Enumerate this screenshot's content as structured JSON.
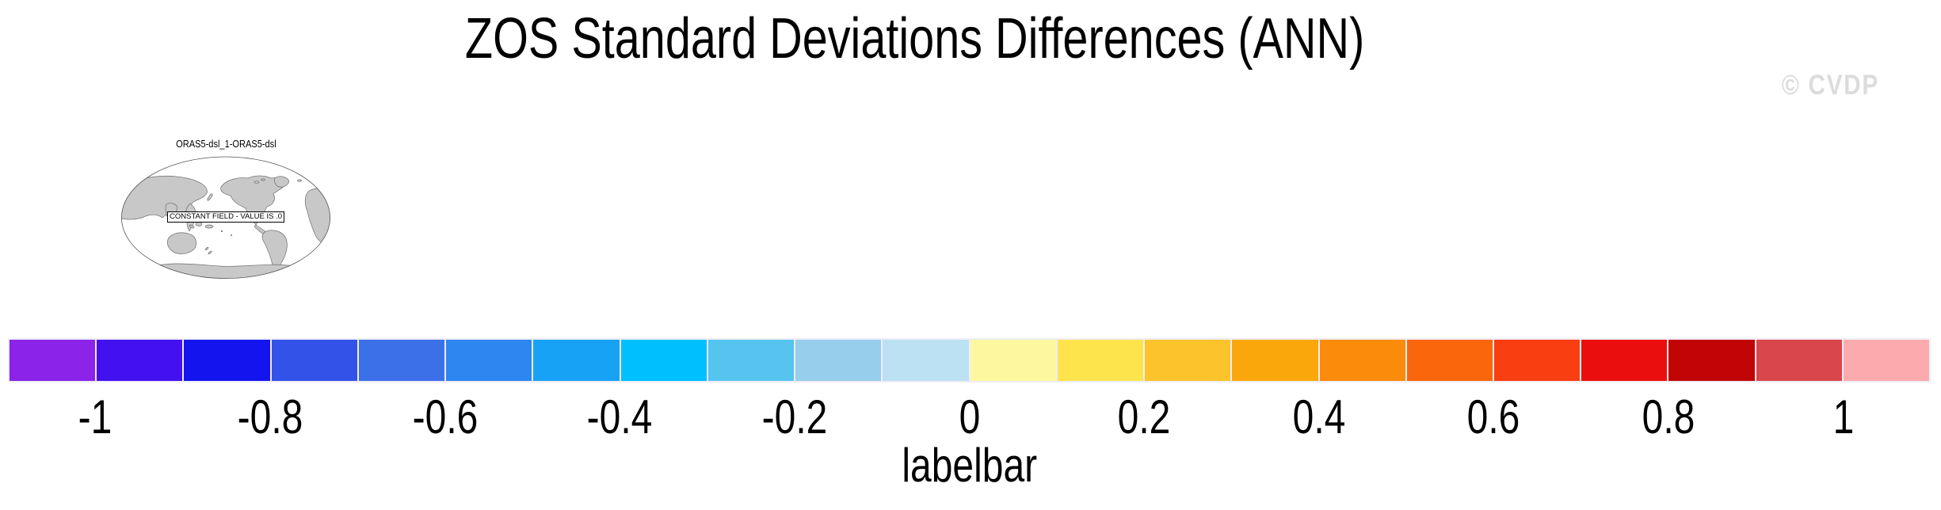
{
  "page": {
    "background": "#ffffff"
  },
  "header": {
    "title": "ZOS Standard Deviations Differences (ANN)",
    "watermark": "© CVDP",
    "watermark_color": "#dcdcdc"
  },
  "map_panel": {
    "title": "ORAS5-dsl_1-ORAS5-dsl",
    "overlay_text": "CONSTANT FIELD - VALUE IS .0",
    "land_color": "#c8c8c8",
    "coast_color": "#6e6e6e",
    "globe_outline_color": "#555555",
    "ocean_color": "#ffffff"
  },
  "chart_data": {
    "type": "heatmap",
    "title": "ZOS Standard Deviations Differences (ANN)",
    "panel_title": "ORAS5-dsl_1-ORAS5-dsl",
    "season": "ANN",
    "variable": "ZOS standard deviation difference",
    "field_note": "CONSTANT FIELD - VALUE IS .0",
    "field_constant_value": 0,
    "projection": "global oval (Pacific-centered)",
    "colorbar": {
      "label": "labelbar",
      "orientation": "horizontal",
      "tick_labels": [
        "-1",
        "-0.8",
        "-0.6",
        "-0.4",
        "-0.2",
        "0",
        "0.2",
        "0.4",
        "0.6",
        "0.8",
        "1"
      ],
      "tick_values": [
        -1,
        -0.8,
        -0.6,
        -0.4,
        -0.2,
        0,
        0.2,
        0.4,
        0.6,
        0.8,
        1
      ],
      "level_interval": 0.1,
      "level_range": [
        -1,
        1
      ],
      "num_boxes": 22,
      "box_colors": [
        "#8b23e8",
        "#4311f0",
        "#1414ef",
        "#3352e8",
        "#3b70e8",
        "#2e86f0",
        "#18a2f5",
        "#00bfff",
        "#55c5f0",
        "#96ceec",
        "#bce1f2",
        "#fdf8a0",
        "#fde44d",
        "#fcc32b",
        "#faa70b",
        "#fb8b0b",
        "#fa660b",
        "#f93e12",
        "#eb0e0e",
        "#c10505",
        "#d9464b",
        "#fbabae"
      ],
      "separator_color": "#efedf7"
    }
  }
}
